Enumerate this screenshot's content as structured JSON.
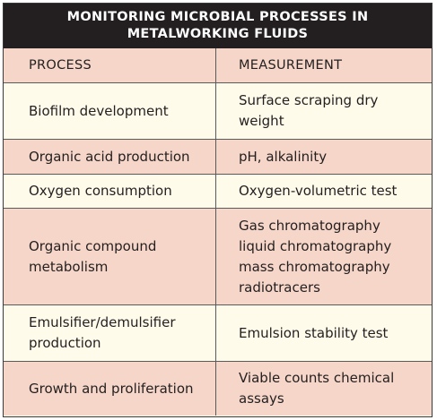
{
  "title": {
    "line1": "MONITORING MICROBIAL PROCESSES IN",
    "line2": "METALWORKING FLUIDS"
  },
  "columns": {
    "process": "PROCESS",
    "measurement": "MEASUREMENT"
  },
  "rows": [
    {
      "process": [
        "Biofilm development"
      ],
      "measurement": [
        "Surface scraping dry",
        "weight"
      ]
    },
    {
      "process": [
        "Organic acid production"
      ],
      "measurement": [
        "pH, alkalinity"
      ]
    },
    {
      "process": [
        "Oxygen consumption"
      ],
      "measurement": [
        "Oxygen-volumetric test"
      ]
    },
    {
      "process": [
        "Organic compound",
        "metabolism"
      ],
      "measurement": [
        "Gas chromatography",
        "liquid chromatography",
        "mass chromatography",
        "radiotracers"
      ]
    },
    {
      "process": [
        "Emulsifier/demulsifier",
        "production"
      ],
      "measurement": [
        "Emulsion stability test"
      ]
    },
    {
      "process": [
        "Growth and proliferation"
      ],
      "measurement": [
        "Viable counts chemical",
        "assays"
      ]
    }
  ],
  "colors": {
    "title_bg": "#231f20",
    "shaded_row": "#f6d6c8",
    "plain_row": "#fffbea"
  }
}
